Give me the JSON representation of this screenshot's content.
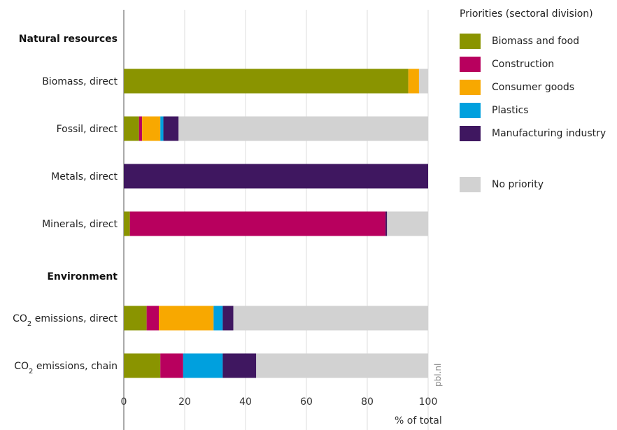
{
  "chart_data": {
    "type": "bar",
    "orientation": "horizontal",
    "stacked": true,
    "xlabel": "% of total",
    "xlim": [
      0,
      100
    ],
    "xticks": [
      0,
      20,
      40,
      60,
      80,
      100
    ],
    "grid": true,
    "legend_position": "right",
    "legend_title": "Priorities (sectoral division)",
    "groups": [
      {
        "name": "Natural resources",
        "categories": [
          "Biomass, direct",
          "Fossil, direct",
          "Metals, direct",
          "Minerals, direct"
        ]
      },
      {
        "name": "Environment",
        "categories": [
          "CO2 emissions, direct",
          "CO2 emissions, chain"
        ]
      }
    ],
    "categories": [
      "Biomass, direct",
      "Fossil, direct",
      "Metals, direct",
      "Minerals, direct",
      "CO2 emissions, direct",
      "CO2 emissions, chain"
    ],
    "series": [
      {
        "name": "Biomass and food",
        "color": "#8a9400",
        "values": [
          93.5,
          5,
          0,
          2,
          7.5,
          12
        ]
      },
      {
        "name": "Construction",
        "color": "#b8005e",
        "values": [
          0,
          1,
          0,
          84,
          4,
          7.5
        ]
      },
      {
        "name": "Consumer goods",
        "color": "#f8a800",
        "values": [
          3.5,
          6,
          0,
          0,
          18,
          0
        ]
      },
      {
        "name": "Plastics",
        "color": "#00a0de",
        "values": [
          0,
          1,
          0,
          0,
          3,
          13
        ]
      },
      {
        "name": "Manufacturing industry",
        "color": "#3f1760",
        "values": [
          0,
          5,
          100,
          0.5,
          3.5,
          11
        ]
      },
      {
        "name": "No priority",
        "color": "#d2d2d2",
        "values": [
          3,
          82,
          0,
          13.5,
          64,
          56.5
        ]
      }
    ],
    "source_note": "pbl.nl"
  }
}
